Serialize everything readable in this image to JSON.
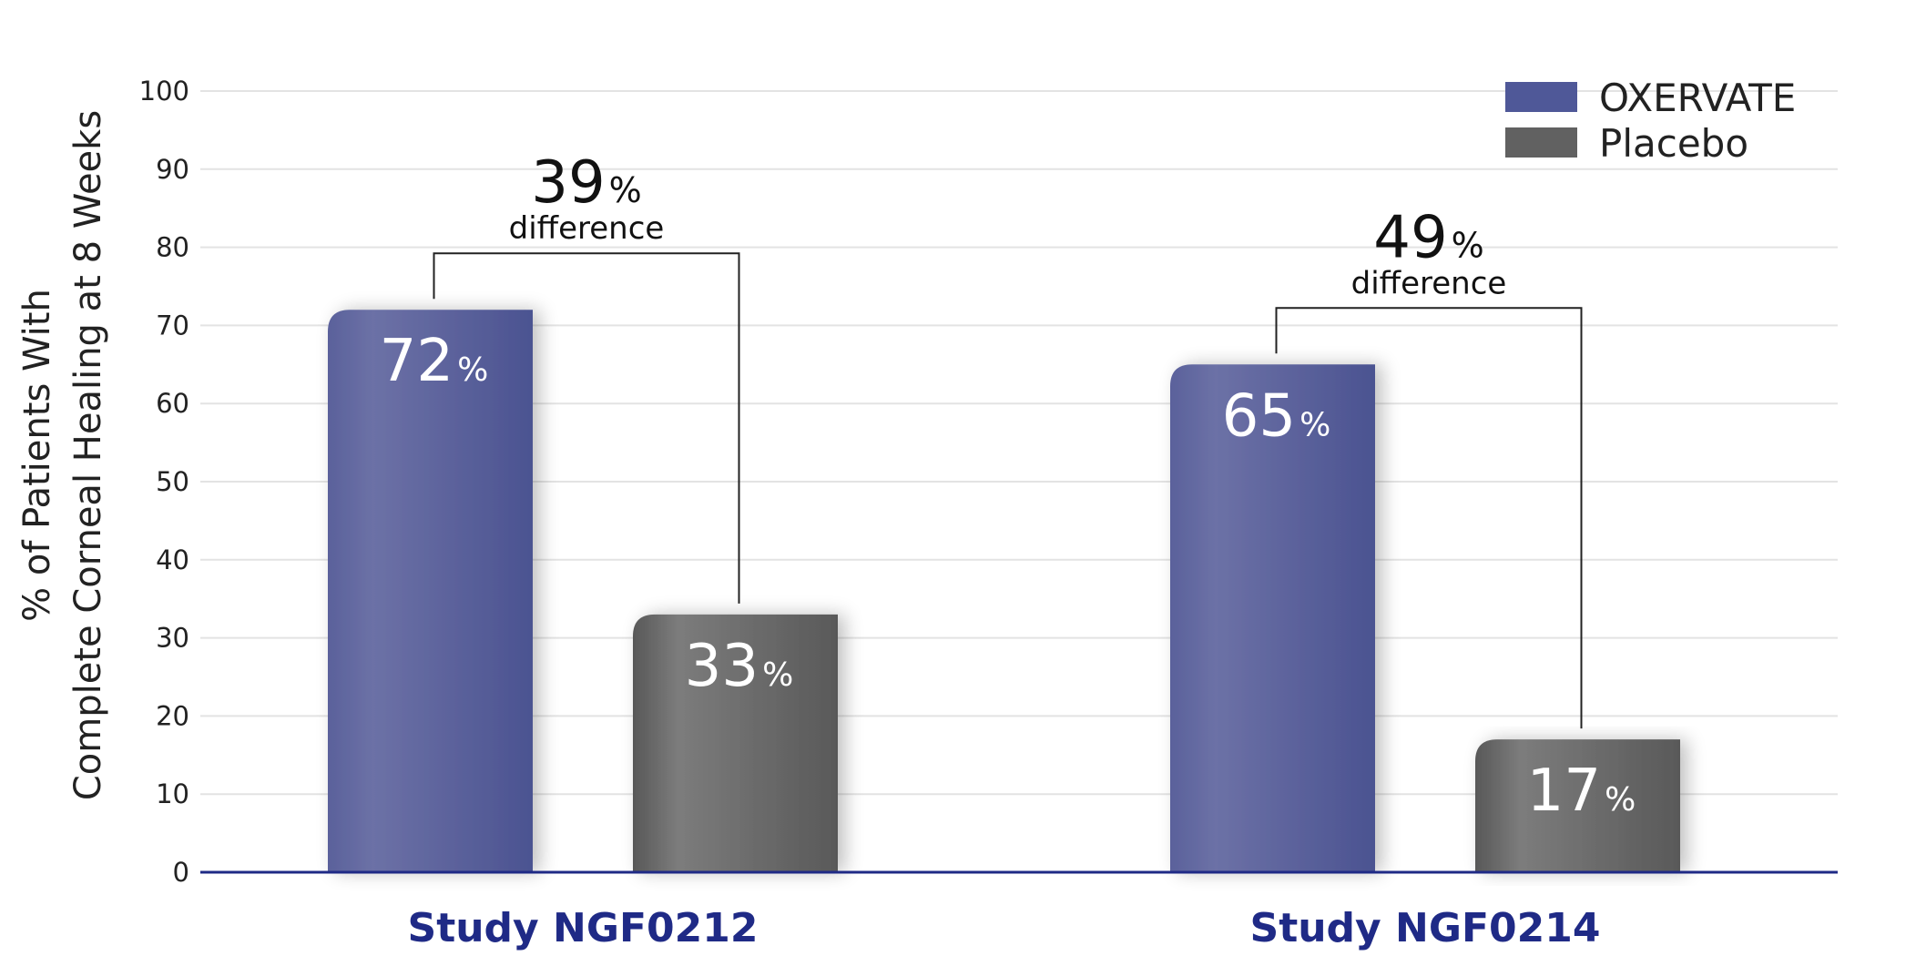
{
  "chart_data": {
    "type": "bar",
    "title": "",
    "xlabel": "",
    "ylabel": [
      "% of Patients With",
      "Complete Corneal Healing at 8 Weeks"
    ],
    "ylim": [
      0,
      100
    ],
    "yticks": [
      0,
      10,
      20,
      30,
      40,
      50,
      60,
      70,
      80,
      90,
      100
    ],
    "grid": true,
    "legend_position": "top-right",
    "categories": [
      "Study NGF0212",
      "Study NGF0214"
    ],
    "series": [
      {
        "name": "OXERVATE",
        "values": [
          72,
          65
        ],
        "color": "#4f5898"
      },
      {
        "name": "Placebo",
        "values": [
          33,
          17
        ],
        "color": "#616161"
      }
    ],
    "value_unit": "%",
    "annotations": [
      {
        "category": "Study NGF0212",
        "value": "39",
        "unit": "%",
        "text": "difference"
      },
      {
        "category": "Study NGF0214",
        "value": "49",
        "unit": "%",
        "text": "difference"
      }
    ],
    "colors": {
      "axis": "#1f2a86",
      "category_label": "#1f2a86",
      "grid": "#e3e3e3"
    }
  }
}
